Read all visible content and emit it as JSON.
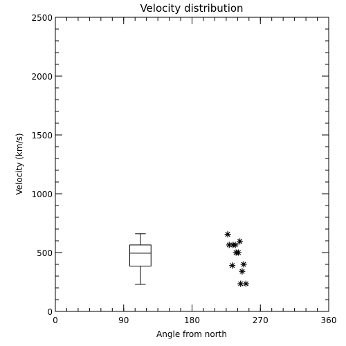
{
  "chart_data": {
    "type": "scatter",
    "title": "Velocity distribution",
    "xlabel": "Angle from north",
    "ylabel": "Velocity (km/s)",
    "xlim": [
      0,
      360
    ],
    "ylim": [
      0,
      2500
    ],
    "x_ticks": [
      0,
      90,
      180,
      270,
      360
    ],
    "y_ticks": [
      0,
      500,
      1000,
      1500,
      2000,
      2500
    ],
    "x_minor_step": 15,
    "y_minor_step": 100,
    "grid": false,
    "boxplot": {
      "x": 112,
      "width_deg": 28,
      "min": 230,
      "q1": 385,
      "median": 495,
      "q3": 565,
      "max": 660
    },
    "points": [
      {
        "x": 227,
        "y": 655
      },
      {
        "x": 229,
        "y": 565
      },
      {
        "x": 234,
        "y": 565
      },
      {
        "x": 237,
        "y": 565
      },
      {
        "x": 238,
        "y": 500
      },
      {
        "x": 241,
        "y": 500
      },
      {
        "x": 243,
        "y": 595
      },
      {
        "x": 233,
        "y": 390
      },
      {
        "x": 248,
        "y": 400
      },
      {
        "x": 246,
        "y": 340
      },
      {
        "x": 244,
        "y": 235
      },
      {
        "x": 251,
        "y": 235
      }
    ]
  }
}
